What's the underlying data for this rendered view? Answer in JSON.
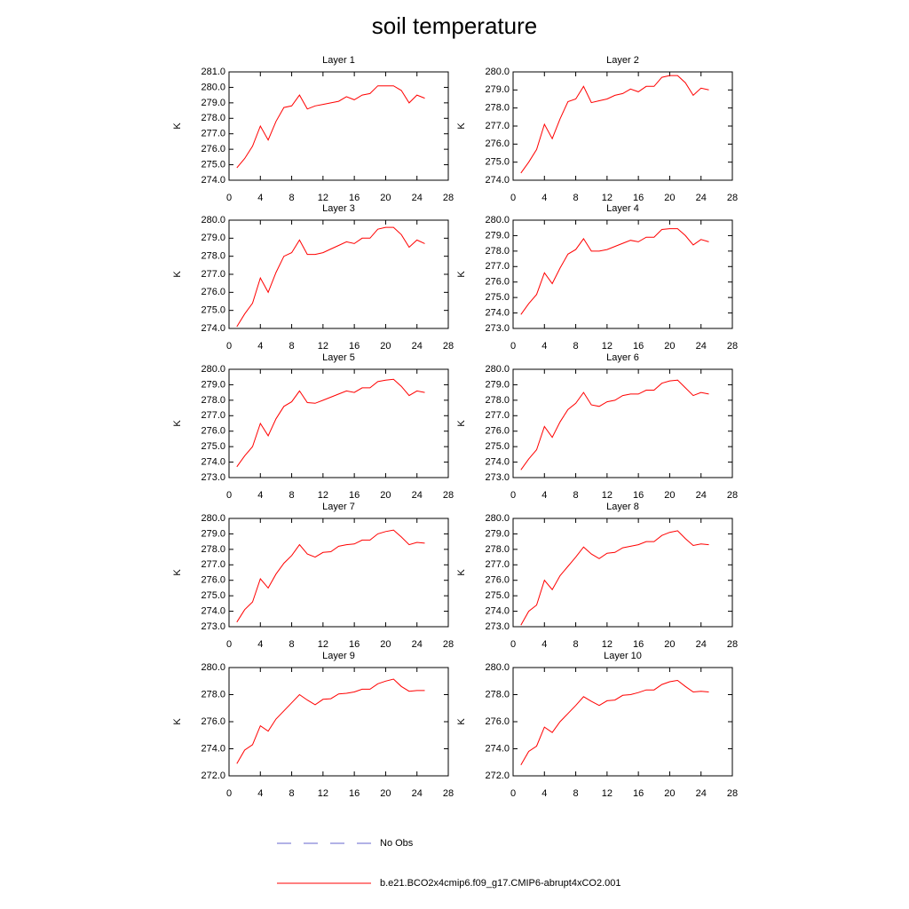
{
  "title": "soil temperature",
  "legend": [
    {
      "name": "No Obs",
      "color": "#6666cc",
      "dashed": true
    },
    {
      "name": "b.e21.BCO2x4cmip6.f09_g17.CMIP6-abrupt4xCO2.001",
      "color": "#ff0000",
      "dashed": false
    }
  ],
  "chart_data": [
    {
      "type": "line",
      "title": "Layer 1",
      "ylabel": "K",
      "xlim": [
        0,
        28
      ],
      "xticks": [
        0,
        4,
        8,
        12,
        16,
        20,
        24,
        28
      ],
      "ylim": [
        274,
        281
      ],
      "yticks": [
        {
          "value": 274,
          "label": "274.0"
        },
        {
          "value": 275,
          "label": "275.0"
        },
        {
          "value": 276,
          "label": "276.0"
        },
        {
          "value": 277,
          "label": "277.0"
        },
        {
          "value": 278,
          "label": "278.0"
        },
        {
          "value": 279,
          "label": "279.0"
        },
        {
          "value": 280,
          "label": "280.0"
        },
        {
          "value": 281,
          "label": "281.0"
        }
      ],
      "x": [
        1,
        2,
        3,
        4,
        5,
        6,
        7,
        8,
        9,
        10,
        11,
        12,
        13,
        14,
        15,
        16,
        17,
        18,
        19,
        20,
        21,
        22,
        23,
        24,
        25
      ],
      "color": "#ff0000",
      "values": [
        274.8,
        275.4,
        276.2,
        277.5,
        276.6,
        277.8,
        278.7,
        278.8,
        279.5,
        278.6,
        278.8,
        278.9,
        279.0,
        279.1,
        279.4,
        279.2,
        279.5,
        279.6,
        280.1,
        280.1,
        280.1,
        279.8,
        279.0,
        279.5,
        279.3
      ]
    },
    {
      "type": "line",
      "title": "Layer 2",
      "ylabel": "K",
      "xlim": [
        0,
        28
      ],
      "xticks": [
        0,
        4,
        8,
        12,
        16,
        20,
        24,
        28
      ],
      "ylim": [
        274,
        280
      ],
      "yticks": [
        {
          "value": 274,
          "label": "274.0"
        },
        {
          "value": 275,
          "label": "275.0"
        },
        {
          "value": 276,
          "label": "276.0"
        },
        {
          "value": 277,
          "label": "277.0"
        },
        {
          "value": 278,
          "label": "278.0"
        },
        {
          "value": 279,
          "label": "279.0"
        },
        {
          "value": 280,
          "label": "280.0"
        }
      ],
      "x": [
        1,
        2,
        3,
        4,
        5,
        6,
        7,
        8,
        9,
        10,
        11,
        12,
        13,
        14,
        15,
        16,
        17,
        18,
        19,
        20,
        21,
        22,
        23,
        24,
        25
      ],
      "color": "#ff0000",
      "values": [
        274.4,
        275.0,
        275.7,
        277.1,
        276.3,
        277.4,
        278.35,
        278.5,
        279.2,
        278.3,
        278.4,
        278.5,
        278.7,
        278.8,
        279.05,
        278.9,
        279.2,
        279.2,
        279.7,
        279.8,
        279.8,
        279.4,
        278.7,
        279.1,
        279.0
      ]
    },
    {
      "type": "line",
      "title": "Layer 3",
      "ylabel": "K",
      "xlim": [
        0,
        28
      ],
      "xticks": [
        0,
        4,
        8,
        12,
        16,
        20,
        24,
        28
      ],
      "ylim": [
        274,
        280
      ],
      "yticks": [
        {
          "value": 274,
          "label": "274.0"
        },
        {
          "value": 275,
          "label": "275.0"
        },
        {
          "value": 276,
          "label": "276.0"
        },
        {
          "value": 277,
          "label": "277.0"
        },
        {
          "value": 278,
          "label": "278.0"
        },
        {
          "value": 279,
          "label": "279.0"
        },
        {
          "value": 280,
          "label": "280.0"
        }
      ],
      "x": [
        1,
        2,
        3,
        4,
        5,
        6,
        7,
        8,
        9,
        10,
        11,
        12,
        13,
        14,
        15,
        16,
        17,
        18,
        19,
        20,
        21,
        22,
        23,
        24,
        25
      ],
      "color": "#ff0000",
      "values": [
        274.1,
        274.8,
        275.4,
        276.8,
        276.0,
        277.1,
        278.0,
        278.2,
        278.9,
        278.1,
        278.1,
        278.2,
        278.4,
        278.6,
        278.8,
        278.7,
        279.0,
        279.0,
        279.5,
        279.6,
        279.6,
        279.2,
        278.5,
        278.9,
        278.7
      ]
    },
    {
      "type": "line",
      "title": "Layer 4",
      "ylabel": "K",
      "xlim": [
        0,
        28
      ],
      "xticks": [
        0,
        4,
        8,
        12,
        16,
        20,
        24,
        28
      ],
      "ylim": [
        273,
        280
      ],
      "yticks": [
        {
          "value": 273,
          "label": "273.0"
        },
        {
          "value": 274,
          "label": "274.0"
        },
        {
          "value": 275,
          "label": "275.0"
        },
        {
          "value": 276,
          "label": "276.0"
        },
        {
          "value": 277,
          "label": "277.0"
        },
        {
          "value": 278,
          "label": "278.0"
        },
        {
          "value": 279,
          "label": "279.0"
        },
        {
          "value": 280,
          "label": "280.0"
        }
      ],
      "x": [
        1,
        2,
        3,
        4,
        5,
        6,
        7,
        8,
        9,
        10,
        11,
        12,
        13,
        14,
        15,
        16,
        17,
        18,
        19,
        20,
        21,
        22,
        23,
        24,
        25
      ],
      "color": "#ff0000",
      "values": [
        273.9,
        274.6,
        275.2,
        276.6,
        275.9,
        276.9,
        277.8,
        278.1,
        278.8,
        278.0,
        278.0,
        278.1,
        278.3,
        278.5,
        278.7,
        278.6,
        278.9,
        278.9,
        279.4,
        279.45,
        279.45,
        279.0,
        278.4,
        278.75,
        278.6
      ]
    },
    {
      "type": "line",
      "title": "Layer 5",
      "ylabel": "K",
      "xlim": [
        0,
        28
      ],
      "xticks": [
        0,
        4,
        8,
        12,
        16,
        20,
        24,
        28
      ],
      "ylim": [
        273,
        280
      ],
      "yticks": [
        {
          "value": 273,
          "label": "273.0"
        },
        {
          "value": 274,
          "label": "274.0"
        },
        {
          "value": 275,
          "label": "275.0"
        },
        {
          "value": 276,
          "label": "276.0"
        },
        {
          "value": 277,
          "label": "277.0"
        },
        {
          "value": 278,
          "label": "278.0"
        },
        {
          "value": 279,
          "label": "279.0"
        },
        {
          "value": 280,
          "label": "280.0"
        }
      ],
      "x": [
        1,
        2,
        3,
        4,
        5,
        6,
        7,
        8,
        9,
        10,
        11,
        12,
        13,
        14,
        15,
        16,
        17,
        18,
        19,
        20,
        21,
        22,
        23,
        24,
        25
      ],
      "color": "#ff0000",
      "values": [
        273.7,
        274.4,
        275.0,
        276.5,
        275.7,
        276.8,
        277.6,
        277.9,
        278.6,
        277.85,
        277.8,
        278.0,
        278.2,
        278.4,
        278.6,
        278.5,
        278.8,
        278.8,
        279.2,
        279.3,
        279.35,
        278.9,
        278.3,
        278.6,
        278.5
      ]
    },
    {
      "type": "line",
      "title": "Layer 6",
      "ylabel": "K",
      "xlim": [
        0,
        28
      ],
      "xticks": [
        0,
        4,
        8,
        12,
        16,
        20,
        24,
        28
      ],
      "ylim": [
        273,
        280
      ],
      "yticks": [
        {
          "value": 273,
          "label": "273.0"
        },
        {
          "value": 274,
          "label": "274.0"
        },
        {
          "value": 275,
          "label": "275.0"
        },
        {
          "value": 276,
          "label": "276.0"
        },
        {
          "value": 277,
          "label": "277.0"
        },
        {
          "value": 278,
          "label": "278.0"
        },
        {
          "value": 279,
          "label": "279.0"
        },
        {
          "value": 280,
          "label": "280.0"
        }
      ],
      "x": [
        1,
        2,
        3,
        4,
        5,
        6,
        7,
        8,
        9,
        10,
        11,
        12,
        13,
        14,
        15,
        16,
        17,
        18,
        19,
        20,
        21,
        22,
        23,
        24,
        25
      ],
      "color": "#ff0000",
      "values": [
        273.5,
        274.2,
        274.8,
        276.3,
        275.6,
        276.6,
        277.4,
        277.8,
        278.5,
        277.7,
        277.6,
        277.9,
        278.0,
        278.3,
        278.4,
        278.4,
        278.65,
        278.65,
        279.1,
        279.25,
        279.3,
        278.8,
        278.3,
        278.5,
        278.4
      ]
    },
    {
      "type": "line",
      "title": "Layer 7",
      "ylabel": "K",
      "xlim": [
        0,
        28
      ],
      "xticks": [
        0,
        4,
        8,
        12,
        16,
        20,
        24,
        28
      ],
      "ylim": [
        273,
        280
      ],
      "yticks": [
        {
          "value": 273,
          "label": "273.0"
        },
        {
          "value": 274,
          "label": "274.0"
        },
        {
          "value": 275,
          "label": "275.0"
        },
        {
          "value": 276,
          "label": "276.0"
        },
        {
          "value": 277,
          "label": "277.0"
        },
        {
          "value": 278,
          "label": "278.0"
        },
        {
          "value": 279,
          "label": "279.0"
        },
        {
          "value": 280,
          "label": "280.0"
        }
      ],
      "x": [
        1,
        2,
        3,
        4,
        5,
        6,
        7,
        8,
        9,
        10,
        11,
        12,
        13,
        14,
        15,
        16,
        17,
        18,
        19,
        20,
        21,
        22,
        23,
        24,
        25
      ],
      "color": "#ff0000",
      "values": [
        273.3,
        274.1,
        274.6,
        276.1,
        275.5,
        276.4,
        277.1,
        277.6,
        278.3,
        277.7,
        277.5,
        277.8,
        277.85,
        278.2,
        278.3,
        278.35,
        278.6,
        278.6,
        279.0,
        279.15,
        279.25,
        278.8,
        278.3,
        278.45,
        278.4
      ]
    },
    {
      "type": "line",
      "title": "Layer 8",
      "ylabel": "K",
      "xlim": [
        0,
        28
      ],
      "xticks": [
        0,
        4,
        8,
        12,
        16,
        20,
        24,
        28
      ],
      "ylim": [
        273,
        280
      ],
      "yticks": [
        {
          "value": 273,
          "label": "273.0"
        },
        {
          "value": 274,
          "label": "274.0"
        },
        {
          "value": 275,
          "label": "275.0"
        },
        {
          "value": 276,
          "label": "276.0"
        },
        {
          "value": 277,
          "label": "277.0"
        },
        {
          "value": 278,
          "label": "278.0"
        },
        {
          "value": 279,
          "label": "279.0"
        },
        {
          "value": 280,
          "label": "280.0"
        }
      ],
      "x": [
        1,
        2,
        3,
        4,
        5,
        6,
        7,
        8,
        9,
        10,
        11,
        12,
        13,
        14,
        15,
        16,
        17,
        18,
        19,
        20,
        21,
        22,
        23,
        24,
        25
      ],
      "color": "#ff0000",
      "values": [
        273.1,
        274.0,
        274.4,
        276.0,
        275.4,
        276.3,
        276.9,
        277.5,
        278.15,
        277.7,
        277.4,
        277.75,
        277.8,
        278.1,
        278.2,
        278.3,
        278.5,
        278.5,
        278.9,
        279.1,
        279.2,
        278.7,
        278.25,
        278.35,
        278.3
      ]
    },
    {
      "type": "line",
      "title": "Layer 9",
      "ylabel": "K",
      "xlim": [
        0,
        28
      ],
      "xticks": [
        0,
        4,
        8,
        12,
        16,
        20,
        24,
        28
      ],
      "ylim": [
        272,
        280
      ],
      "yticks": [
        {
          "value": 272,
          "label": "272.0"
        },
        {
          "value": 274,
          "label": "274.0"
        },
        {
          "value": 276,
          "label": "276.0"
        },
        {
          "value": 278,
          "label": "278.0"
        },
        {
          "value": 280,
          "label": "280.0"
        }
      ],
      "x": [
        1,
        2,
        3,
        4,
        5,
        6,
        7,
        8,
        9,
        10,
        11,
        12,
        13,
        14,
        15,
        16,
        17,
        18,
        19,
        20,
        21,
        22,
        23,
        24,
        25
      ],
      "color": "#ff0000",
      "values": [
        272.9,
        273.9,
        274.3,
        275.7,
        275.3,
        276.2,
        276.8,
        277.4,
        278.0,
        277.6,
        277.25,
        277.65,
        277.7,
        278.05,
        278.1,
        278.2,
        278.4,
        278.4,
        278.8,
        279.0,
        279.15,
        278.6,
        278.25,
        278.3,
        278.3
      ]
    },
    {
      "type": "line",
      "title": "Layer 10",
      "ylabel": "K",
      "xlim": [
        0,
        28
      ],
      "xticks": [
        0,
        4,
        8,
        12,
        16,
        20,
        24,
        28
      ],
      "ylim": [
        272,
        280
      ],
      "yticks": [
        {
          "value": 272,
          "label": "272.0"
        },
        {
          "value": 274,
          "label": "274.0"
        },
        {
          "value": 276,
          "label": "276.0"
        },
        {
          "value": 278,
          "label": "278.0"
        },
        {
          "value": 280,
          "label": "280.0"
        }
      ],
      "x": [
        1,
        2,
        3,
        4,
        5,
        6,
        7,
        8,
        9,
        10,
        11,
        12,
        13,
        14,
        15,
        16,
        17,
        18,
        19,
        20,
        21,
        22,
        23,
        24,
        25
      ],
      "color": "#ff0000",
      "values": [
        272.8,
        273.8,
        274.2,
        275.6,
        275.2,
        276.0,
        276.6,
        277.2,
        277.85,
        277.5,
        277.2,
        277.55,
        277.6,
        277.95,
        278.0,
        278.15,
        278.35,
        278.35,
        278.75,
        278.95,
        279.05,
        278.6,
        278.2,
        278.25,
        278.2
      ]
    }
  ]
}
